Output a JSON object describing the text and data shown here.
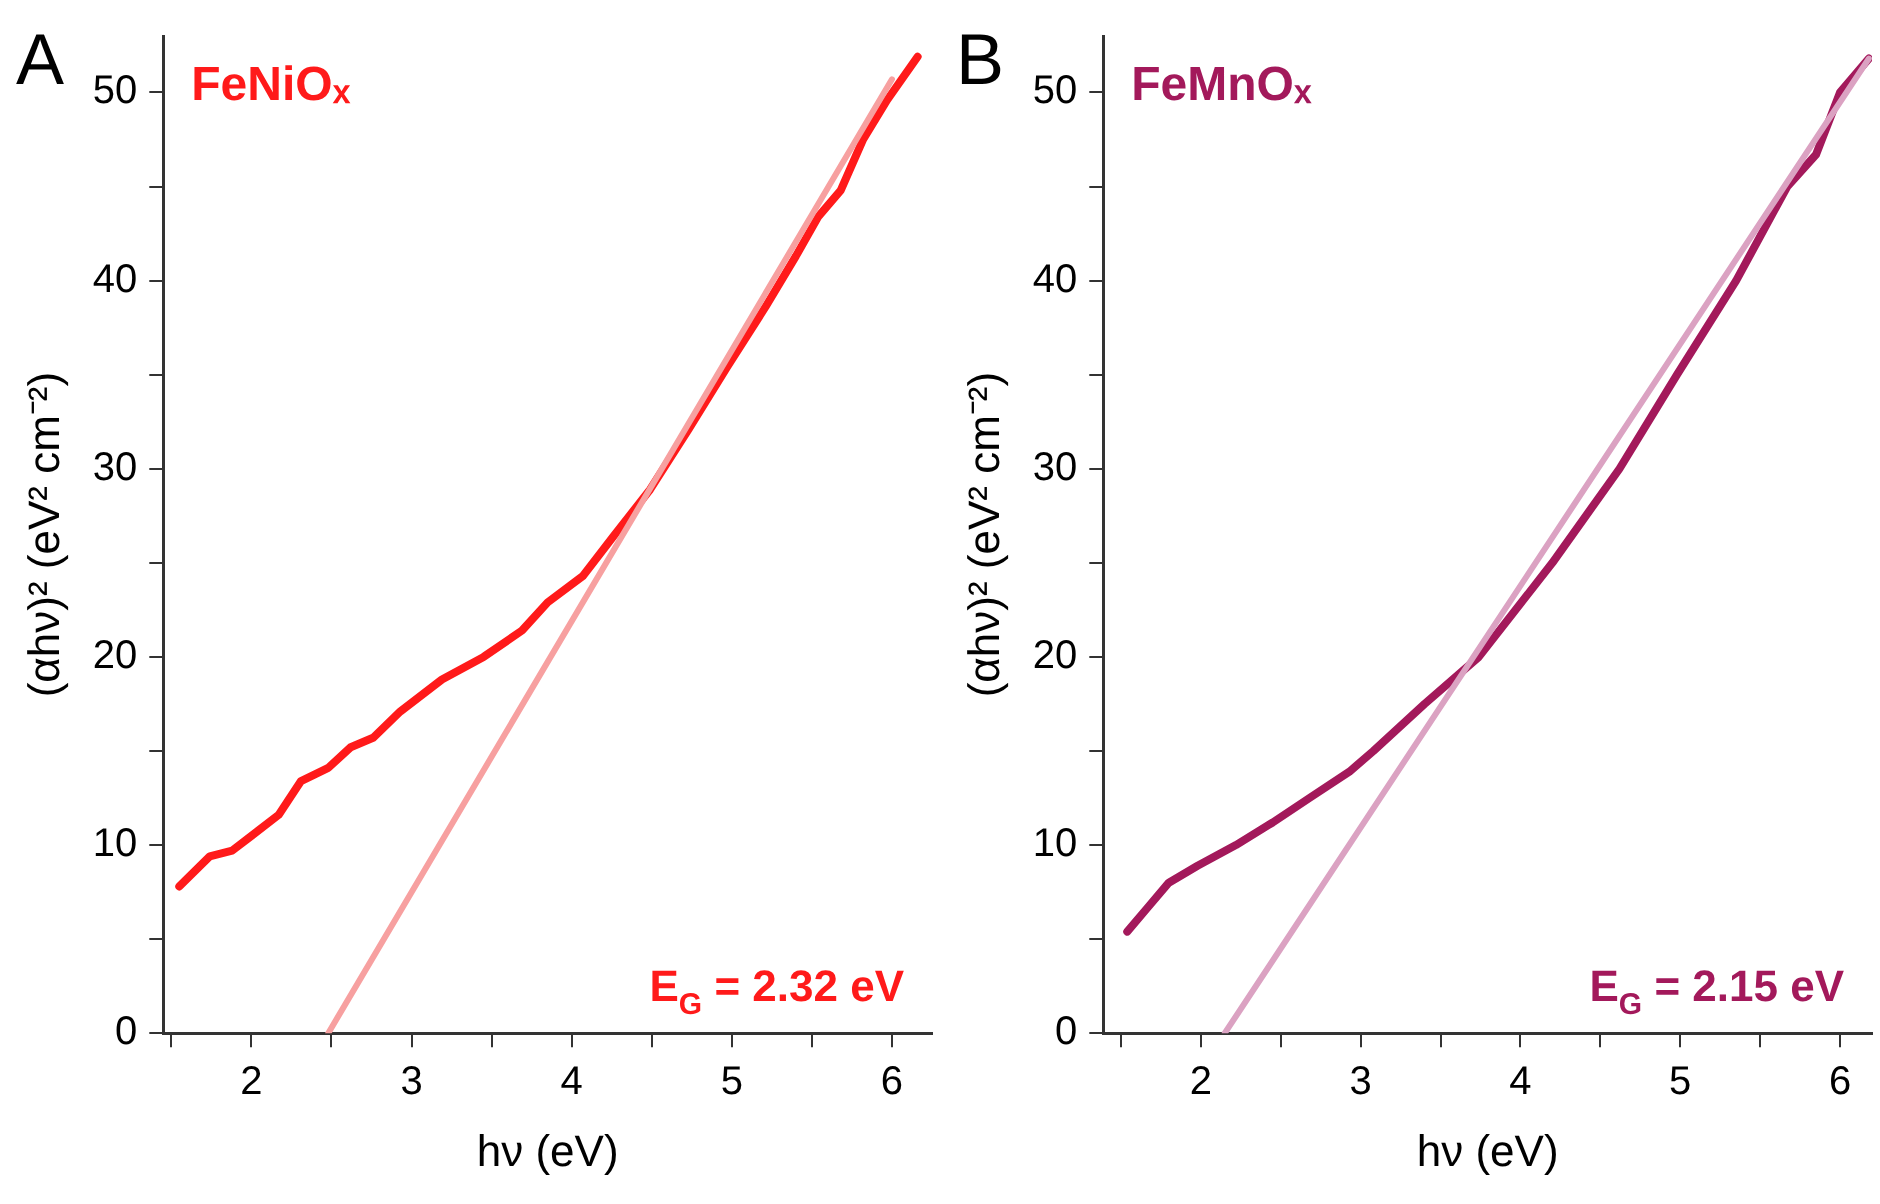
{
  "chart_data": [
    {
      "type": "line",
      "title": "FeNiOₓ",
      "xlabel": "hν (eV)",
      "ylabel": "(αhν)² (eV² cm⁻²)",
      "annotations": [
        "A",
        "E$_{G}$ = 2.32 eV"
      ],
      "xlim": [
        1.45,
        6.25
      ],
      "ylim": [
        0,
        53
      ],
      "xticks": [
        {
          "value": 1.5,
          "label": null
        },
        2,
        {
          "value": 2.5,
          "label": null
        },
        3,
        {
          "value": 3.5,
          "label": null
        },
        4,
        {
          "value": 4.5,
          "label": null
        },
        5,
        {
          "value": 5.5,
          "label": null
        },
        6
      ],
      "yticks": [
        0,
        {
          "value": 5,
          "label": null
        },
        10,
        {
          "value": 15,
          "label": null
        },
        20,
        {
          "value": 25,
          "label": null
        },
        30,
        {
          "value": 35,
          "label": null
        },
        40,
        {
          "value": 45,
          "label": null
        },
        50
      ],
      "grid": false,
      "legend": false,
      "marker": "none",
      "line_style": "solid",
      "series": [
        {
          "color": "#f7a0a0",
          "x": [
            2.48,
            6.0
          ],
          "values": [
            0,
            50.7
          ]
        },
        {
          "color": "#ff1a1a",
          "x": [
            1.55,
            1.74,
            1.88,
            2.17,
            2.31,
            2.48,
            2.62,
            2.76,
            2.93,
            3.19,
            3.45,
            3.69,
            3.85,
            4.07,
            4.26,
            4.49,
            4.73,
            4.97,
            5.21,
            5.4,
            5.54,
            5.68,
            5.82,
            5.97,
            6.16
          ],
          "values": [
            7.8,
            9.4,
            9.7,
            11.6,
            13.4,
            14.1,
            15.2,
            15.7,
            17.1,
            18.8,
            20,
            21.4,
            22.9,
            24.3,
            26.4,
            28.9,
            32.1,
            35.4,
            38.6,
            41.3,
            43.4,
            44.8,
            47.5,
            49.6,
            51.9
          ]
        }
      ]
    },
    {
      "type": "line",
      "title": "FeMnOₓ",
      "xlabel": "hν (eV)",
      "ylabel": "(αhν)² (eV² cm⁻²)",
      "annotations": [
        "B",
        "E$_{G}$ = 2.15 eV"
      ],
      "xlim": [
        1.39,
        6.2
      ],
      "ylim": [
        0,
        53
      ],
      "xticks": [
        {
          "value": 1.5,
          "label": null
        },
        2,
        {
          "value": 2.5,
          "label": null
        },
        3,
        {
          "value": 3.5,
          "label": null
        },
        4,
        {
          "value": 4.5,
          "label": null
        },
        5,
        {
          "value": 5.5,
          "label": null
        },
        6
      ],
      "yticks": [
        0,
        {
          "value": 5,
          "label": null
        },
        10,
        {
          "value": 15,
          "label": null
        },
        20,
        {
          "value": 25,
          "label": null
        },
        30,
        {
          "value": 35,
          "label": null
        },
        40,
        {
          "value": 45,
          "label": null
        },
        50
      ],
      "grid": false,
      "legend": false,
      "marker": "none",
      "line_style": "solid",
      "series": [
        {
          "color": "#dba2c2",
          "x": [
            2.15,
            6.18
          ],
          "values": [
            0,
            51.8
          ]
        },
        {
          "color": "#a3195b",
          "x": [
            1.54,
            1.66,
            1.8,
            1.98,
            2.22,
            2.45,
            2.68,
            2.93,
            3.08,
            3.4,
            3.74,
            4.2,
            4.62,
            4.98,
            5.35,
            5.67,
            5.85,
            6.0,
            6.18
          ],
          "values": [
            5.4,
            6.6,
            8.0,
            8.9,
            10,
            11.2,
            12.5,
            13.9,
            15,
            17.5,
            20,
            25,
            30,
            35,
            40,
            45,
            46.7,
            50,
            51.8
          ]
        }
      ]
    }
  ]
}
